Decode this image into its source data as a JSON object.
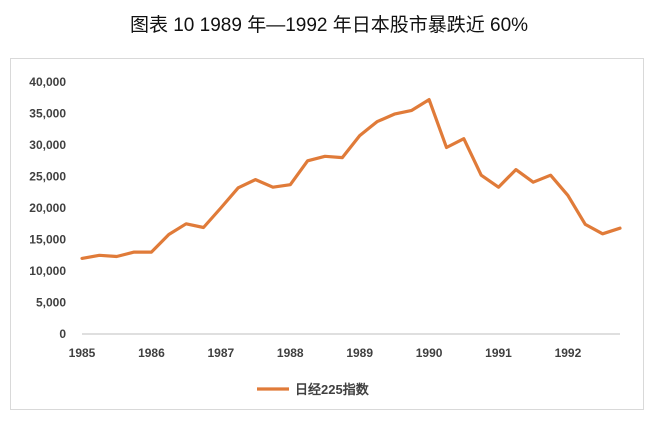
{
  "title": "图表 10 1989 年—1992 年日本股市暴跌近 60%",
  "chart_data": {
    "type": "line",
    "title": "图表 10 1989 年—1992 年日本股市暴跌近 60%",
    "xlabel": "",
    "ylabel": "",
    "ylim": [
      0,
      40000
    ],
    "yticks": [
      "0",
      "5,000",
      "10,000",
      "15,000",
      "20,000",
      "25,000",
      "30,000",
      "35,000",
      "40,000"
    ],
    "xticks": [
      "1985",
      "1986",
      "1987",
      "1988",
      "1989",
      "1990",
      "1991",
      "1992"
    ],
    "grid": false,
    "legend": "bottom",
    "series": [
      {
        "name": "日经225指数",
        "color": "#E07B39",
        "x": [
          1985.0,
          1985.25,
          1985.5,
          1985.75,
          1986.0,
          1986.25,
          1986.5,
          1986.75,
          1987.0,
          1987.25,
          1987.5,
          1987.75,
          1988.0,
          1988.25,
          1988.5,
          1988.75,
          1989.0,
          1989.25,
          1989.5,
          1989.75,
          1990.0,
          1990.25,
          1990.5,
          1990.75,
          1991.0,
          1991.25,
          1991.5,
          1991.75,
          1992.0,
          1992.25,
          1992.5,
          1992.75
        ],
        "values": [
          12000,
          12500,
          12300,
          13000,
          13000,
          15800,
          17500,
          16900,
          20000,
          23200,
          24500,
          23300,
          23700,
          27500,
          28200,
          28000,
          31500,
          33700,
          34900,
          35500,
          37200,
          29600,
          31000,
          25200,
          23300,
          26100,
          24100,
          25200,
          22000,
          17400,
          15900,
          16800
        ]
      }
    ]
  }
}
